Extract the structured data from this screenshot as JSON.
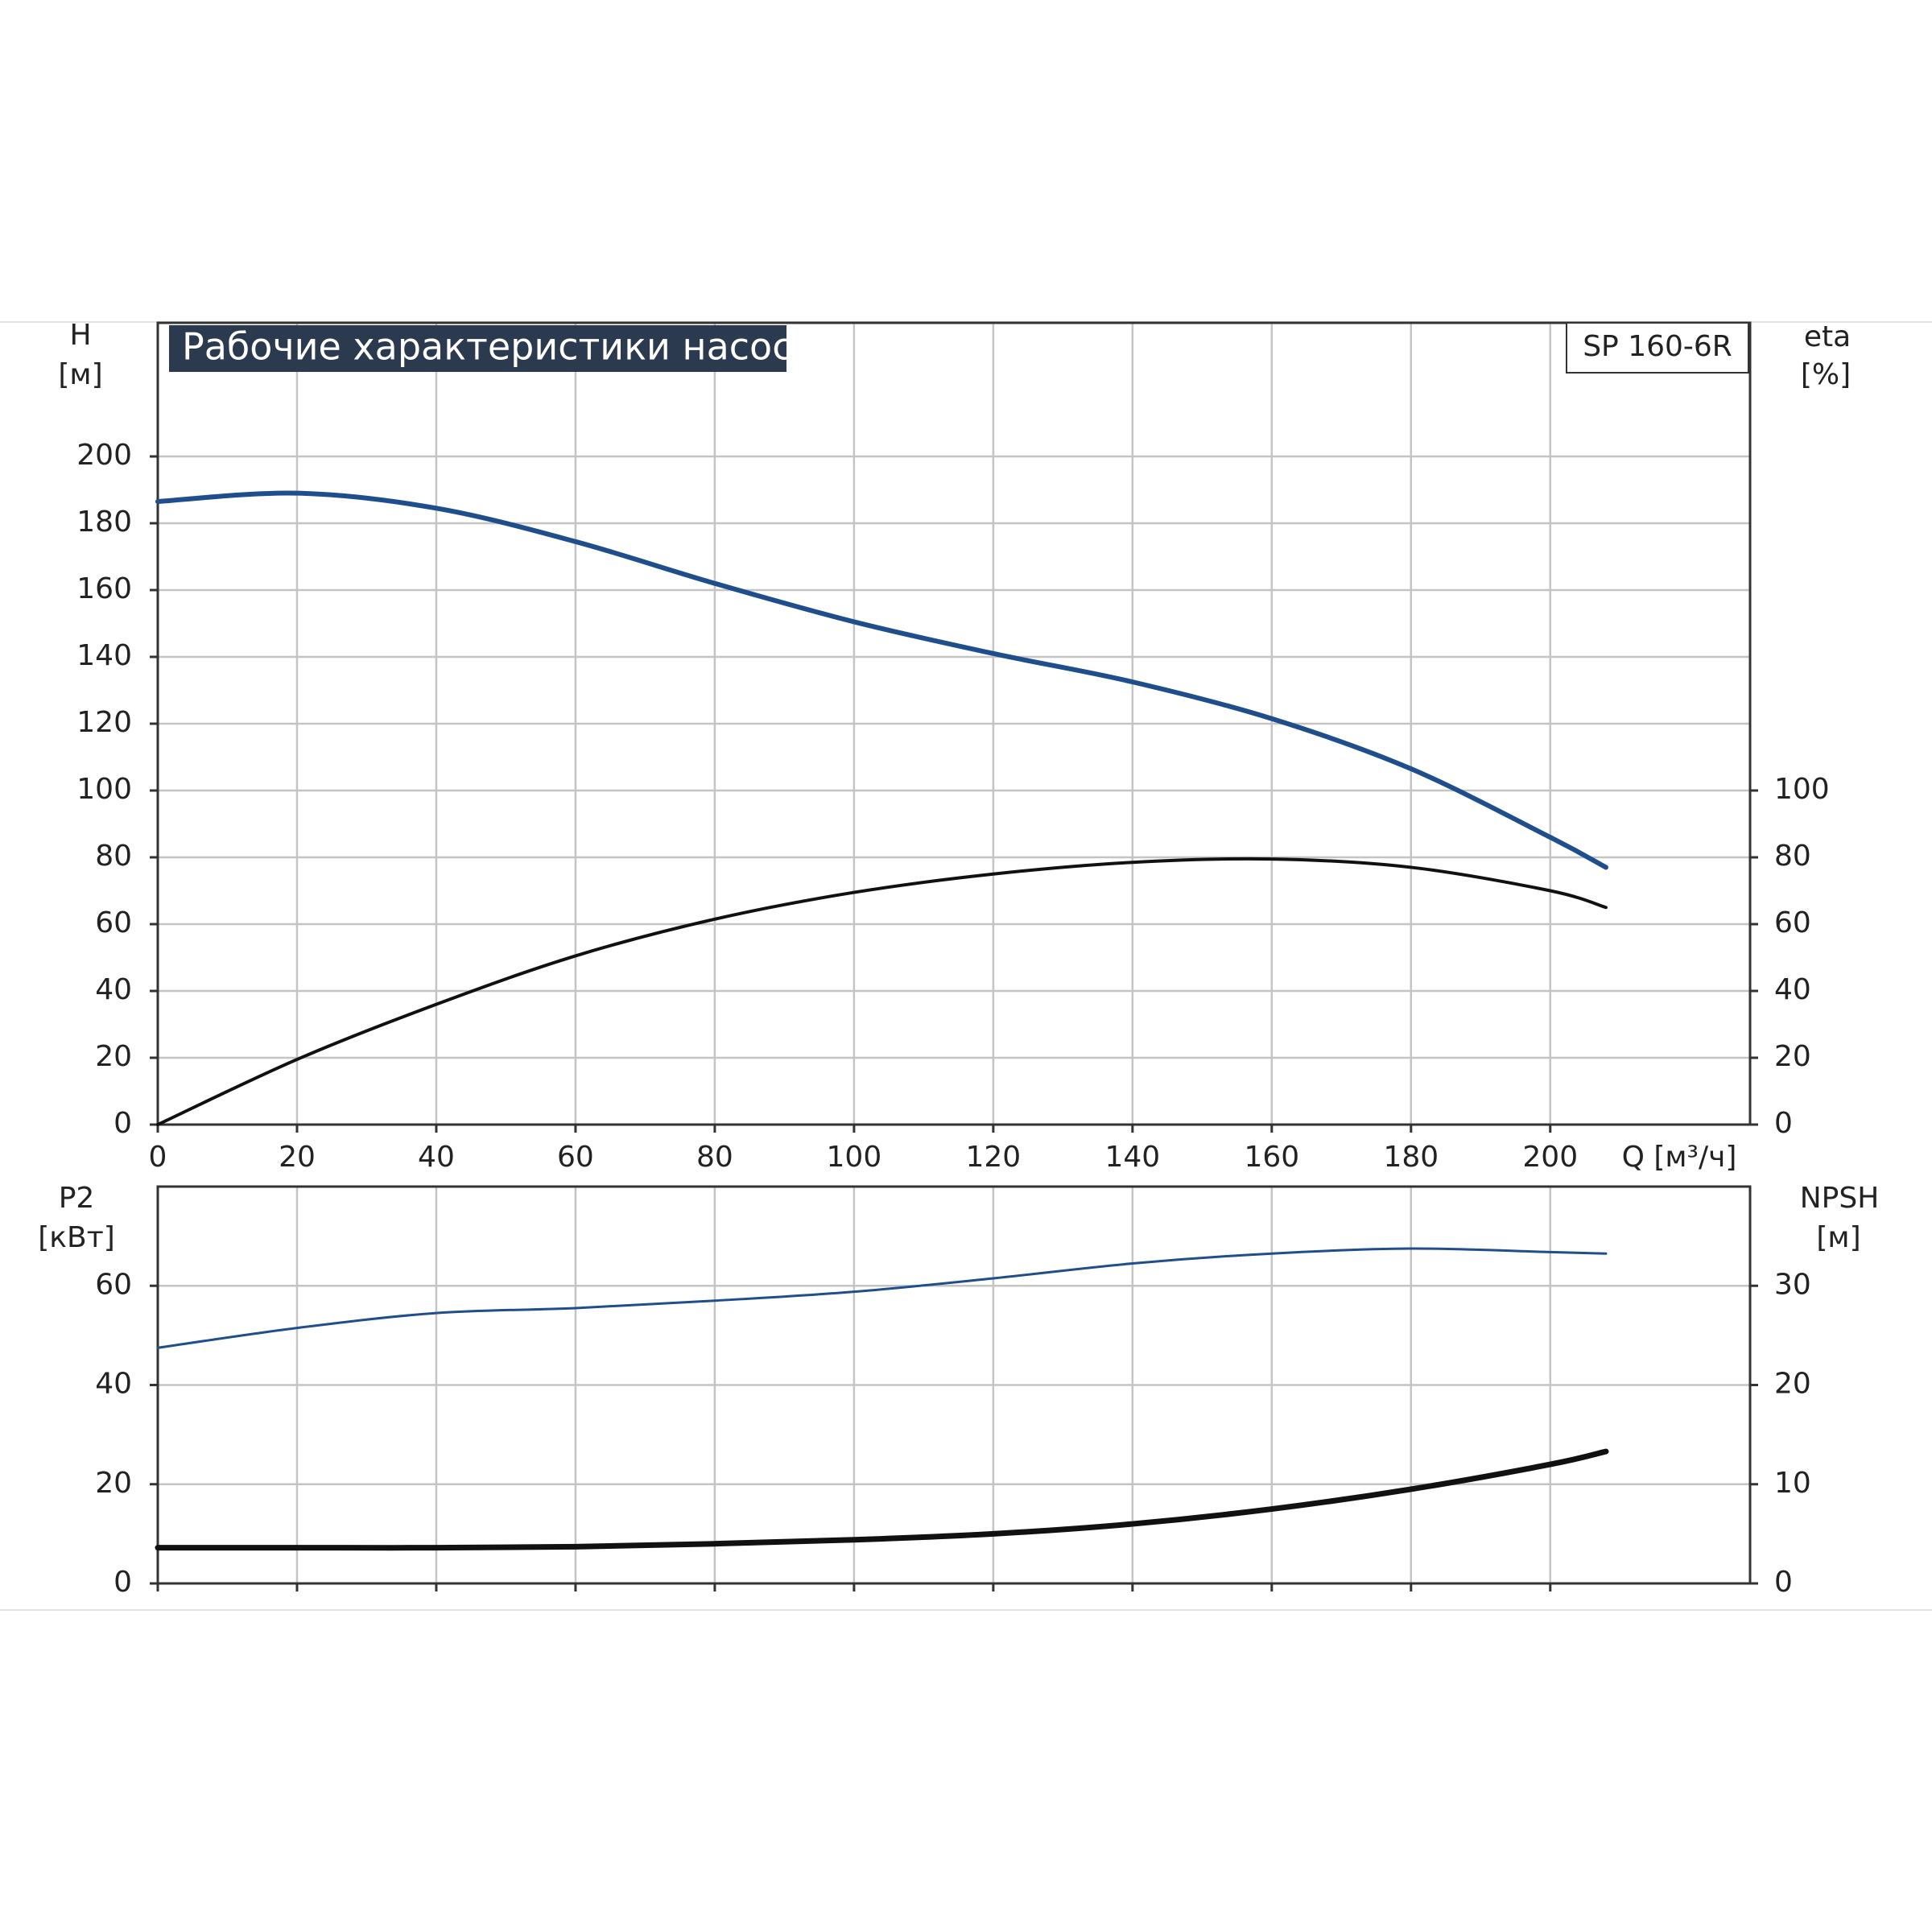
{
  "chart_data": [
    {
      "type": "line",
      "title": "Рабочие характеристики насоса",
      "model": "SP 160-6R",
      "xlabel": "Q [м³/ч]",
      "ylabel": "H",
      "yunit": "[м]",
      "y2label": "eta",
      "y2unit": "[%]",
      "x": [
        0,
        20,
        40,
        60,
        80,
        100,
        120,
        140,
        160,
        180,
        200,
        208
      ],
      "xlim": [
        0,
        228.7
      ],
      "xticks": [
        0,
        20,
        40,
        60,
        80,
        100,
        120,
        140,
        160,
        180,
        200
      ],
      "ylim": [
        0,
        240
      ],
      "yticks": [
        0,
        20,
        40,
        60,
        80,
        100,
        120,
        140,
        160,
        180,
        200
      ],
      "y2lim": [
        0,
        240
      ],
      "y2ticks": [
        0,
        20,
        40,
        60,
        80,
        100
      ],
      "grid": true,
      "series": [
        {
          "color": "#1f4e8c",
          "values": [
            186.5,
            189,
            184.5,
            174.5,
            162,
            150.5,
            141,
            132.5,
            121.5,
            106.5,
            86,
            77
          ]
        },
        {
          "color": "#111111",
          "axis": "y2",
          "values": [
            0,
            19.5,
            36,
            50.5,
            61.5,
            69.5,
            75,
            78.5,
            79.5,
            77,
            70,
            65
          ]
        }
      ]
    },
    {
      "type": "line",
      "ylabel": "P2",
      "yunit": "[кВт]",
      "y2label": "NPSH",
      "y2unit": "[м]",
      "x": [
        0,
        20,
        40,
        60,
        80,
        100,
        120,
        140,
        160,
        180,
        200,
        208
      ],
      "xlim": [
        0,
        228.7
      ],
      "xticks": [
        0,
        20,
        40,
        60,
        80,
        100,
        120,
        140,
        160,
        180,
        200
      ],
      "ylim": [
        0,
        80
      ],
      "yticks": [
        0,
        20,
        40,
        60
      ],
      "y2lim": [
        0,
        40
      ],
      "y2ticks": [
        0,
        10,
        20,
        30
      ],
      "grid": true,
      "series": [
        {
          "color": "#1f4e8c",
          "values": [
            47.5,
            51.5,
            54.5,
            55.5,
            57,
            58.8,
            61.5,
            64.5,
            66.5,
            67.5,
            66.8,
            66.5
          ]
        },
        {
          "color": "#111111",
          "axis": "y2",
          "values": [
            3.6,
            3.6,
            3.6,
            3.7,
            4.0,
            4.4,
            5.0,
            6.0,
            7.5,
            9.5,
            12.0,
            13.3
          ]
        }
      ]
    }
  ]
}
